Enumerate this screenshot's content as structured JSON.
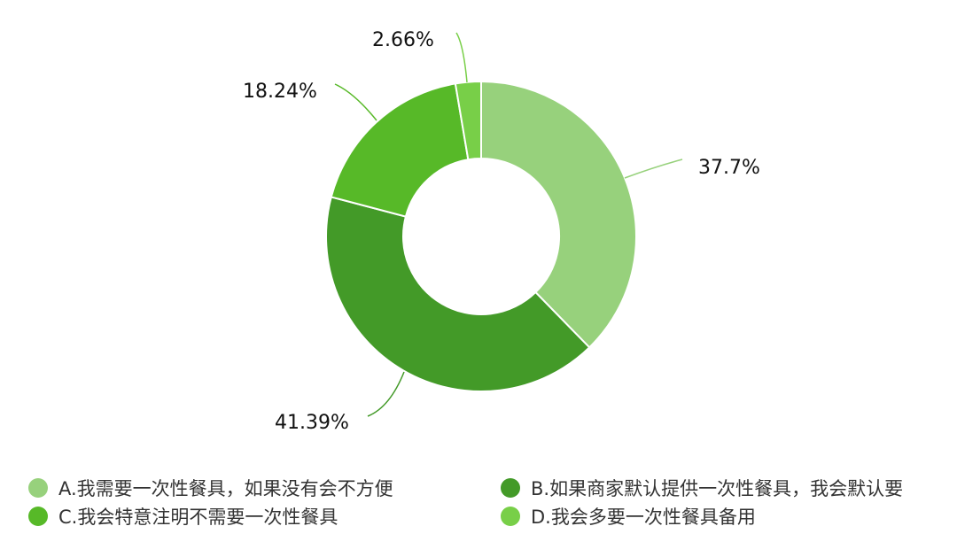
{
  "chart_data": {
    "type": "pie",
    "donut": true,
    "categories": [
      "A.我需要一次性餐具，如果没有会不方便",
      "B.如果商家默认提供一次性餐具，我会默认要",
      "C.我会特意注明不需要一次性餐具",
      "D.我会多要一次性餐具备用"
    ],
    "values": [
      37.7,
      41.39,
      18.24,
      2.66
    ],
    "data_labels": [
      "37.7%",
      "41.39%",
      "18.24%",
      "2.66%"
    ],
    "colors": [
      "#97d17c",
      "#439a28",
      "#57b928",
      "#78cf48"
    ],
    "legend_position": "bottom"
  }
}
